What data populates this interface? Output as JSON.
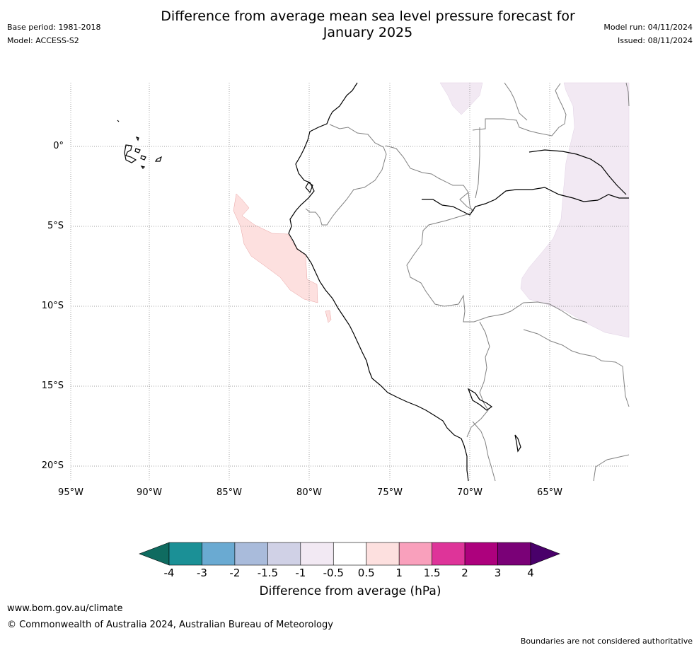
{
  "header": {
    "title_line1": "Difference from average mean sea level pressure forecast for",
    "title_line2": "January 2025",
    "base_period": "Base period: 1981-2018",
    "model": "Model: ACCESS-S2",
    "model_run": "Model run: 04/11/2024",
    "issued": "Issued: 08/11/2024"
  },
  "map": {
    "lat_labels": [
      "0°",
      "5°S",
      "10°S",
      "15°S",
      "20°S"
    ],
    "lon_labels": [
      "95°W",
      "90°W",
      "85°W",
      "80°W",
      "75°W",
      "70°W",
      "65°W"
    ],
    "land_outline_color": "#000000",
    "border_color": "#808080",
    "gridline_color": "#808080",
    "positive_anomaly_color": "#fde0df",
    "light_anomaly_color": "#f2e9f3"
  },
  "colorbar": {
    "labels": [
      "-4",
      "-3",
      "-2",
      "-1.5",
      "-1",
      "-0.5",
      "0.5",
      "1",
      "1.5",
      "2",
      "3",
      "4"
    ],
    "colors": [
      "#0f6b60",
      "#1b9096",
      "#6aaad2",
      "#a9bbdb",
      "#d0d1e6",
      "#f2e9f3",
      "#ffffff",
      "#fde0df",
      "#f9a0bc",
      "#de3499",
      "#ad017d",
      "#7a0177",
      "#49006a"
    ],
    "title": "Difference from average (hPa)"
  },
  "footer": {
    "url": "www.bom.gov.au/climate",
    "copyright": "© Commonwealth of Australia 2024, Australian Bureau of Meteorology",
    "disclaimer": "Boundaries are not considered authoritative"
  }
}
